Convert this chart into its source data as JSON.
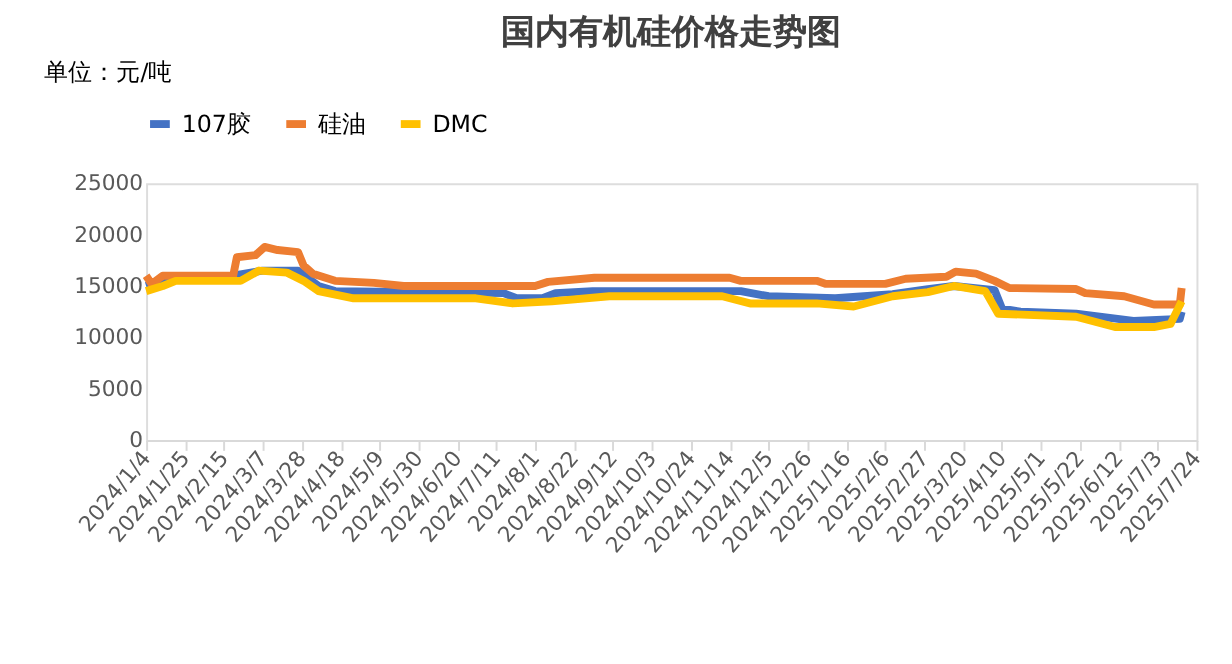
{
  "chart_data": {
    "type": "line",
    "title": "国内有机硅价格走势图",
    "ylabel": "单位：元/吨",
    "xlim": [
      "2024-01-04",
      "2025-07-24"
    ],
    "xticks": [
      {
        "value": "2024-01-04",
        "label": "2024/1/4"
      },
      {
        "value": "2024-01-25",
        "label": "2024/1/25"
      },
      {
        "value": "2024-02-15",
        "label": "2024/2/15"
      },
      {
        "value": "2024-03-07",
        "label": "2024/3/7"
      },
      {
        "value": "2024-03-28",
        "label": "2024/3/28"
      },
      {
        "value": "2024-04-18",
        "label": "2024/4/18"
      },
      {
        "value": "2024-05-09",
        "label": "2024/5/9"
      },
      {
        "value": "2024-05-30",
        "label": "2024/5/30"
      },
      {
        "value": "2024-06-20",
        "label": "2024/6/20"
      },
      {
        "value": "2024-07-11",
        "label": "2024/7/11"
      },
      {
        "value": "2024-08-01",
        "label": "2024/8/1"
      },
      {
        "value": "2024-08-22",
        "label": "2024/8/22"
      },
      {
        "value": "2024-09-12",
        "label": "2024/9/12"
      },
      {
        "value": "2024-10-03",
        "label": "2024/10/3"
      },
      {
        "value": "2024-10-24",
        "label": "2024/10/24"
      },
      {
        "value": "2024-11-14",
        "label": "2024/11/14"
      },
      {
        "value": "2024-12-05",
        "label": "2024/12/5"
      },
      {
        "value": "2024-12-26",
        "label": "2024/12/26"
      },
      {
        "value": "2025-01-16",
        "label": "2025/1/16"
      },
      {
        "value": "2025-02-06",
        "label": "2025/2/6"
      },
      {
        "value": "2025-02-27",
        "label": "2025/2/27"
      },
      {
        "value": "2025-03-20",
        "label": "2025/3/20"
      },
      {
        "value": "2025-04-10",
        "label": "2025/4/10"
      },
      {
        "value": "2025-05-01",
        "label": "2025/5/1"
      },
      {
        "value": "2025-05-22",
        "label": "2025/5/22"
      },
      {
        "value": "2025-06-12",
        "label": "2025/6/12"
      },
      {
        "value": "2025-07-03",
        "label": "2025/7/3"
      },
      {
        "value": "2025-07-24",
        "label": "2025/7/24"
      }
    ],
    "ylim": [
      0,
      25000
    ],
    "yticks": [
      0,
      5000,
      10000,
      15000,
      20000,
      25000
    ],
    "grid": false,
    "legend": "top",
    "line_style": "solid",
    "marker": "none",
    "series": [
      {
        "name": "107胶",
        "color": "#4472c4",
        "x": [
          "2024-01-04",
          "2024-01-13",
          "2024-02-20",
          "2024-03-07",
          "2024-03-26",
          "2024-04-06",
          "2024-04-15",
          "2024-07-15",
          "2024-07-22",
          "2024-08-05",
          "2024-08-12",
          "2024-09-01",
          "2024-11-20",
          "2024-12-05",
          "2025-01-10",
          "2025-02-10",
          "2025-03-01",
          "2025-03-15",
          "2025-04-06",
          "2025-04-10",
          "2025-04-20",
          "2025-05-20",
          "2025-06-20",
          "2025-07-15",
          "2025-07-16"
        ],
        "values": [
          15000,
          15500,
          16000,
          16500,
          16500,
          15000,
          14500,
          14300,
          13800,
          13800,
          14300,
          14500,
          14500,
          14000,
          13800,
          14200,
          14700,
          15000,
          14600,
          12800,
          12500,
          12300,
          11600,
          11800,
          12500
        ]
      },
      {
        "name": "硅油",
        "color": "#ed7d31",
        "x": [
          "2024-01-04",
          "2024-01-07",
          "2024-01-13",
          "2024-02-20",
          "2024-02-22",
          "2024-03-03",
          "2024-03-08",
          "2024-03-15",
          "2024-03-26",
          "2024-03-29",
          "2024-04-03",
          "2024-04-15",
          "2024-05-06",
          "2024-05-22",
          "2024-08-01",
          "2024-08-08",
          "2024-09-02",
          "2024-11-14",
          "2024-11-20",
          "2024-12-31",
          "2025-01-05",
          "2025-02-06",
          "2025-02-17",
          "2025-03-11",
          "2025-03-16",
          "2025-03-27",
          "2025-04-06",
          "2025-04-14",
          "2025-05-20",
          "2025-05-25",
          "2025-06-15",
          "2025-07-01",
          "2025-07-15",
          "2025-07-16"
        ],
        "values": [
          16000,
          15200,
          16000,
          16000,
          17800,
          18000,
          18800,
          18500,
          18300,
          17000,
          16200,
          15500,
          15300,
          15000,
          15000,
          15400,
          15800,
          15800,
          15500,
          15500,
          15200,
          15200,
          15700,
          15900,
          16400,
          16200,
          15500,
          14800,
          14700,
          14300,
          14000,
          13200,
          13200,
          14800
        ]
      },
      {
        "name": "DMC",
        "color": "#ffc000",
        "x": [
          "2024-01-04",
          "2024-01-13",
          "2024-01-20",
          "2024-02-24",
          "2024-03-05",
          "2024-03-20",
          "2024-03-29",
          "2024-04-06",
          "2024-04-25",
          "2024-06-30",
          "2024-07-20",
          "2024-08-10",
          "2024-09-10",
          "2024-11-10",
          "2024-11-25",
          "2024-12-31",
          "2025-01-20",
          "2025-02-10",
          "2025-03-01",
          "2025-03-15",
          "2025-04-01",
          "2025-04-08",
          "2025-05-20",
          "2025-06-10",
          "2025-07-01",
          "2025-07-10",
          "2025-07-16"
        ],
        "values": [
          14500,
          15000,
          15500,
          15500,
          16500,
          16300,
          15500,
          14500,
          13800,
          13800,
          13300,
          13500,
          14000,
          14000,
          13300,
          13300,
          13000,
          14000,
          14400,
          15000,
          14500,
          12300,
          12000,
          11000,
          11000,
          11300,
          13500
        ]
      }
    ]
  }
}
